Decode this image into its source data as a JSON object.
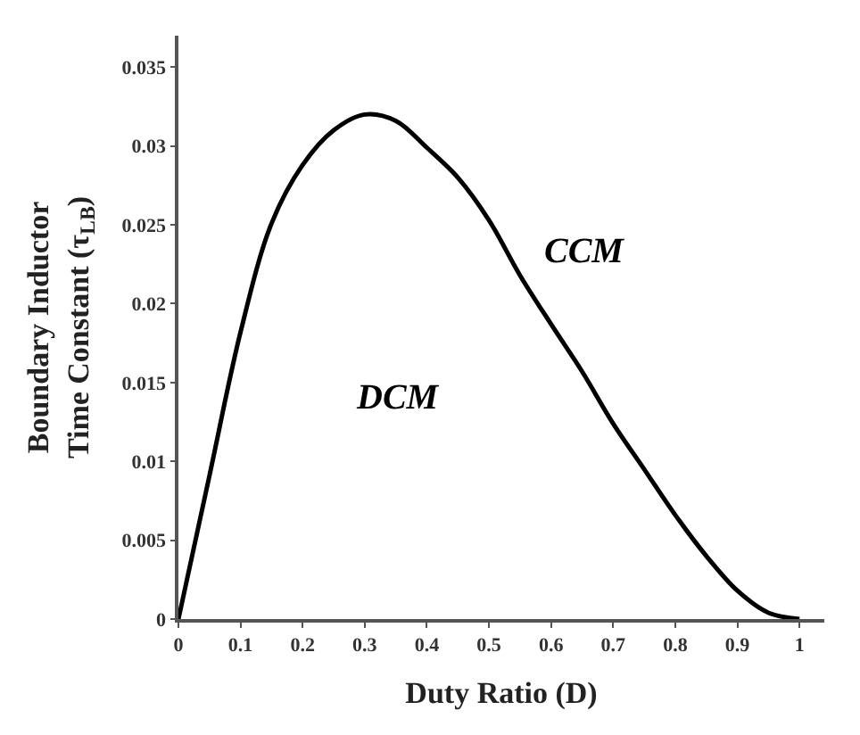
{
  "chart_data": {
    "type": "line",
    "xlabel": "Duty Ratio (D)",
    "ylabel": "Boundary Inductor\nTime Constant (τ$_{LB}$)",
    "x": [
      0,
      0.05,
      0.1,
      0.15,
      0.2,
      0.25,
      0.3,
      0.35,
      0.4,
      0.45,
      0.5,
      0.55,
      0.6,
      0.65,
      0.7,
      0.75,
      0.8,
      0.85,
      0.9,
      0.95,
      1.0
    ],
    "series": [
      {
        "color": "#000000",
        "values": [
          0,
          0.0091,
          0.0182,
          0.0251,
          0.0288,
          0.031,
          0.032,
          0.0316,
          0.0299,
          0.028,
          0.0253,
          0.0218,
          0.0187,
          0.0157,
          0.0124,
          0.0095,
          0.0066,
          0.004,
          0.0018,
          0.0004,
          0
        ]
      }
    ],
    "xlim": [
      0,
      1.04
    ],
    "ylim": [
      0,
      0.037
    ],
    "xticks": [
      0,
      0.1,
      0.2,
      0.3,
      0.4,
      0.5,
      0.6,
      0.7,
      0.8,
      0.9,
      1
    ],
    "yticks": [
      0,
      0.005,
      0.01,
      0.015,
      0.02,
      0.025,
      0.03,
      0.035
    ],
    "annotations": [
      "DCM",
      "CCM"
    ],
    "marker": "none",
    "line_style": "solid"
  }
}
